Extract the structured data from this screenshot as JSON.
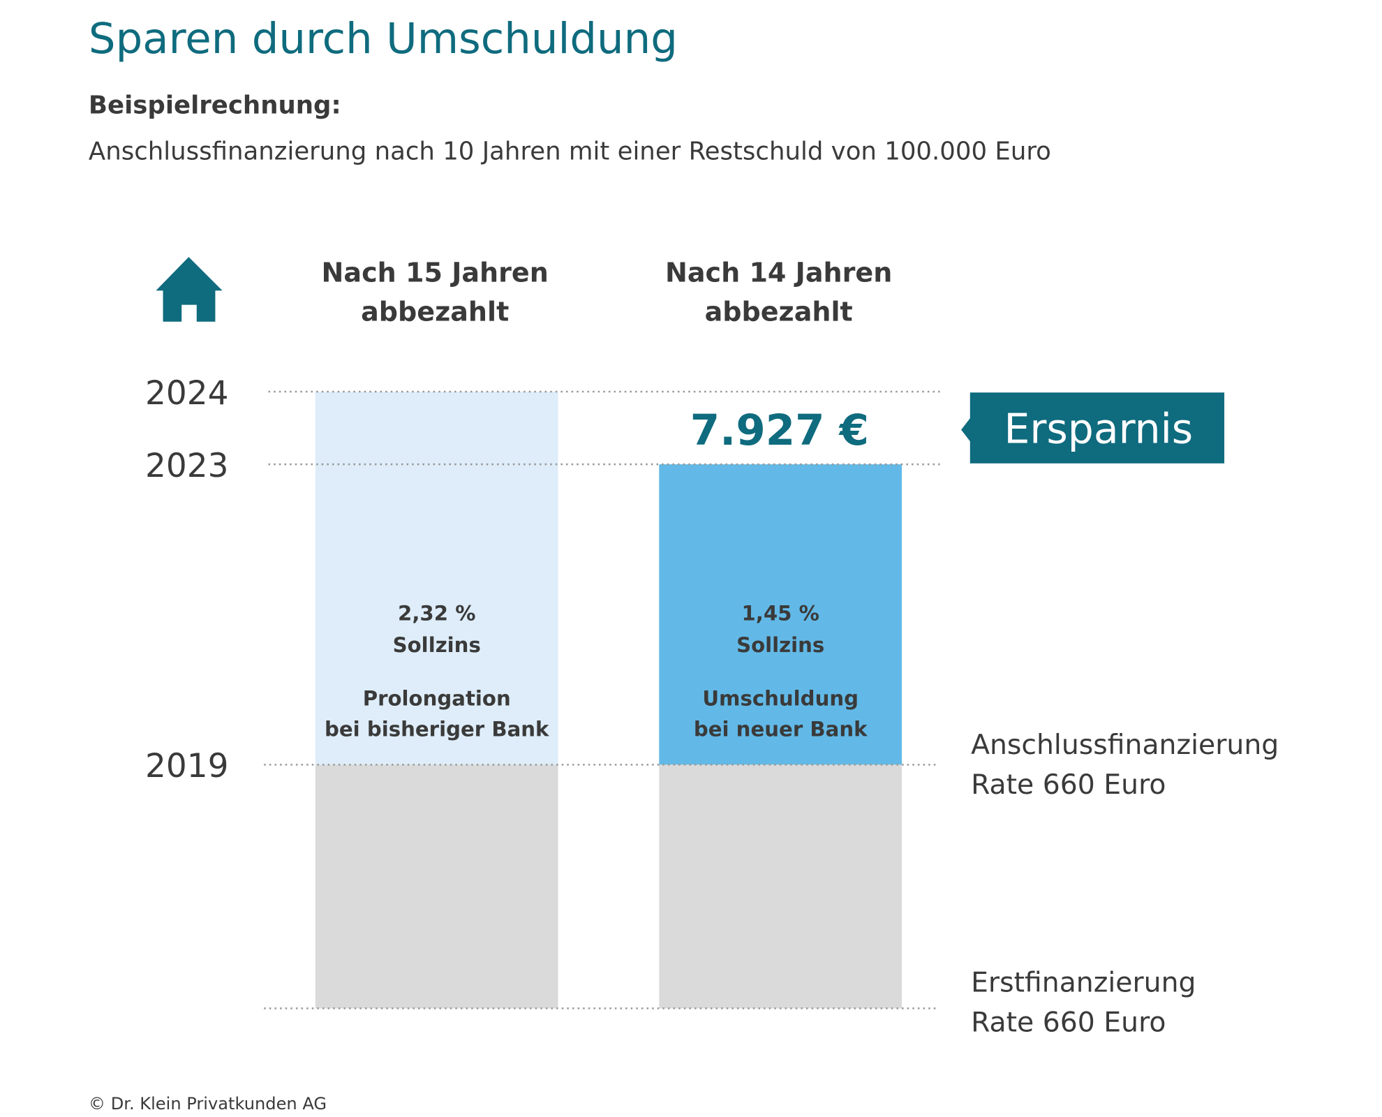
{
  "header": {
    "title": "Sparen durch Umschuldung",
    "label": "Beispielrechnung:",
    "subtitle": "Anschlussfinanzierung nach 10 Jahren mit einer Restschuld von 100.000 Euro"
  },
  "columns": [
    {
      "heading": [
        "Nach 15 Jahren",
        "abbezahlt"
      ],
      "rate": "2,32 %",
      "rate_label": "Sollzins",
      "description": [
        "Prolongation",
        "bei bisheriger Bank"
      ]
    },
    {
      "heading": [
        "Nach 14 Jahren",
        "abbezahlt"
      ],
      "rate": "1,45 %",
      "rate_label": "Sollzins",
      "description": [
        "Umschuldung",
        "bei neuer Bank"
      ]
    }
  ],
  "years": [
    "2024",
    "2023",
    "2019"
  ],
  "savings": {
    "amount": "7.927 €",
    "label": "Ersparnis"
  },
  "phases": [
    {
      "name": "Anschlussfinanzierung",
      "rate": "Rate 660 Euro"
    },
    {
      "name": "Erstfinanzierung",
      "rate": "Rate 660 Euro"
    }
  ],
  "footer": "© Dr. Klein Privatkunden AG"
}
